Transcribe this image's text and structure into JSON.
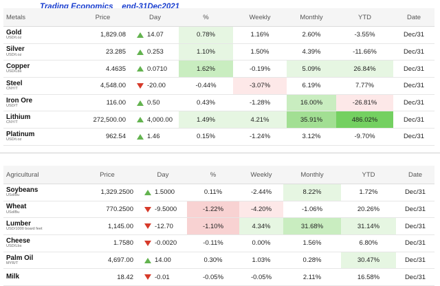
{
  "annotation": "Trading Economics    end-31Dec2021",
  "metals": {
    "headers": [
      "Metals",
      "Price",
      "Day",
      "%",
      "Weekly",
      "Monthly",
      "YTD",
      "Date"
    ],
    "rows": [
      {
        "name": "Gold",
        "unit": "USD/t.oz",
        "price": "1,829.08",
        "day": "14.07",
        "dir": "up",
        "pct": "0.78%",
        "weekly": "1.16%",
        "monthly": "2.60%",
        "ytd": "-3.55%",
        "date": "Dec/31"
      },
      {
        "name": "Silver",
        "unit": "USD/t.oz",
        "price": "23.285",
        "day": "0.253",
        "dir": "up",
        "pct": "1.10%",
        "weekly": "1.50%",
        "monthly": "4.39%",
        "ytd": "-11.66%",
        "date": "Dec/31"
      },
      {
        "name": "Copper",
        "unit": "USD/Lbs",
        "price": "4.4635",
        "day": "0.0710",
        "dir": "up",
        "pct": "1.62%",
        "weekly": "-0.19%",
        "monthly": "5.09%",
        "ytd": "26.84%",
        "date": "Dec/31"
      },
      {
        "name": "Steel",
        "unit": "CNY/T",
        "price": "4,548.00",
        "day": "-20.00",
        "dir": "down",
        "pct": "-0.44%",
        "weekly": "-3.07%",
        "monthly": "6.19%",
        "ytd": "7.77%",
        "date": "Dec/31"
      },
      {
        "name": "Iron Ore",
        "unit": "USD/T",
        "price": "116.00",
        "day": "0.50",
        "dir": "up",
        "pct": "0.43%",
        "weekly": "-1.28%",
        "monthly": "16.00%",
        "ytd": "-26.81%",
        "date": "Dec/31"
      },
      {
        "name": "Lithium",
        "unit": "CNY/T",
        "price": "272,500.00",
        "day": "4,000.00",
        "dir": "up",
        "pct": "1.49%",
        "weekly": "4.21%",
        "monthly": "35.91%",
        "ytd": "486.02%",
        "date": "Dec/31"
      },
      {
        "name": "Platinum",
        "unit": "USD/t.oz",
        "price": "962.54",
        "day": "1.46",
        "dir": "up",
        "pct": "0.15%",
        "weekly": "-1.24%",
        "monthly": "3.12%",
        "ytd": "-9.70%",
        "date": "Dec/31"
      }
    ]
  },
  "agri": {
    "headers": [
      "Agricultural",
      "Price",
      "Day",
      "%",
      "Weekly",
      "Monthly",
      "YTD",
      "Date"
    ],
    "rows": [
      {
        "name": "Soybeans",
        "unit": "USd/Bu",
        "price": "1,329.2500",
        "day": "1.5000",
        "dir": "up",
        "pct": "0.11%",
        "weekly": "-2.44%",
        "monthly": "8.22%",
        "ytd": "1.72%",
        "date": "Dec/31"
      },
      {
        "name": "Wheat",
        "unit": "USd/Bu",
        "price": "770.2500",
        "day": "-9.5000",
        "dir": "down",
        "pct": "-1.22%",
        "weekly": "-4.20%",
        "monthly": "-1.06%",
        "ytd": "20.26%",
        "date": "Dec/31"
      },
      {
        "name": "Lumber",
        "unit": "USD/1000 board feet",
        "price": "1,145.00",
        "day": "-12.70",
        "dir": "down",
        "pct": "-1.10%",
        "weekly": "4.34%",
        "monthly": "31.68%",
        "ytd": "31.14%",
        "date": "Dec/31"
      },
      {
        "name": "Cheese",
        "unit": "USD/Lbs",
        "price": "1.7580",
        "day": "-0.0020",
        "dir": "down",
        "pct": "-0.11%",
        "weekly": "0.00%",
        "monthly": "1.56%",
        "ytd": "6.80%",
        "date": "Dec/31"
      },
      {
        "name": "Palm Oil",
        "unit": "MYR/T",
        "price": "4,697.00",
        "day": "14.00",
        "dir": "up",
        "pct": "0.30%",
        "weekly": "1.03%",
        "monthly": "0.28%",
        "ytd": "30.47%",
        "date": "Dec/31"
      },
      {
        "name": "Milk",
        "unit": "",
        "price": "18.42",
        "day": "-0.01",
        "dir": "down",
        "pct": "-0.05%",
        "weekly": "-0.05%",
        "monthly": "2.11%",
        "ytd": "16.58%",
        "date": "Dec/31"
      }
    ]
  },
  "colors": {
    "up_arrow": "#63b34f",
    "down_arrow": "#d63a2a",
    "annotation": "#1a3fcf"
  }
}
